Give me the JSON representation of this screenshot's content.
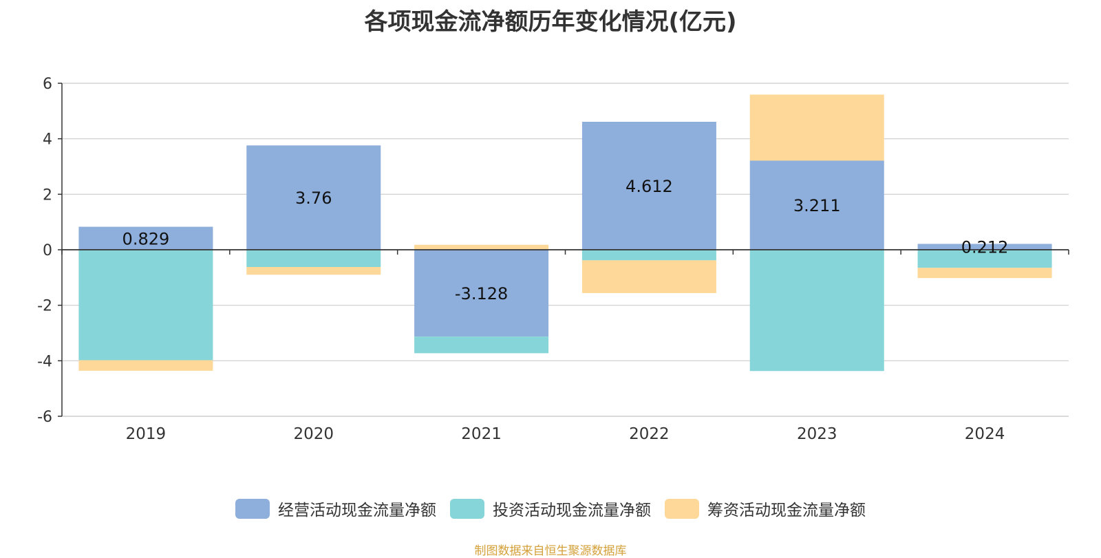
{
  "chart_data": {
    "type": "bar",
    "stacked": true,
    "title": "各项现金流净额历年变化情况(亿元)",
    "categories": [
      "2019",
      "2020",
      "2021",
      "2022",
      "2023",
      "2024"
    ],
    "series": [
      {
        "name": "经营活动现金流量净额",
        "color": "#8eaedc",
        "values": [
          0.829,
          3.76,
          -3.128,
          4.612,
          3.211,
          0.212
        ]
      },
      {
        "name": "投资活动现金流量净额",
        "color": "#86d5d8",
        "values": [
          -3.98,
          -0.62,
          -0.6,
          -0.38,
          -4.37,
          -0.65
        ]
      },
      {
        "name": "筹资活动现金流量净额",
        "color": "#fed898",
        "values": [
          -0.38,
          -0.28,
          0.18,
          -1.18,
          2.38,
          -0.37
        ]
      }
    ],
    "data_labels": [
      "0.829",
      "3.76",
      "-3.128",
      "4.612",
      "3.211",
      "0.212"
    ],
    "ylim": [
      -6,
      6
    ],
    "yticks": [
      "6",
      "4",
      "2",
      "0",
      "-2",
      "-4",
      "-6"
    ],
    "grid": true,
    "legend_position": "bottom"
  },
  "source": "制图数据来自恒生聚源数据库"
}
